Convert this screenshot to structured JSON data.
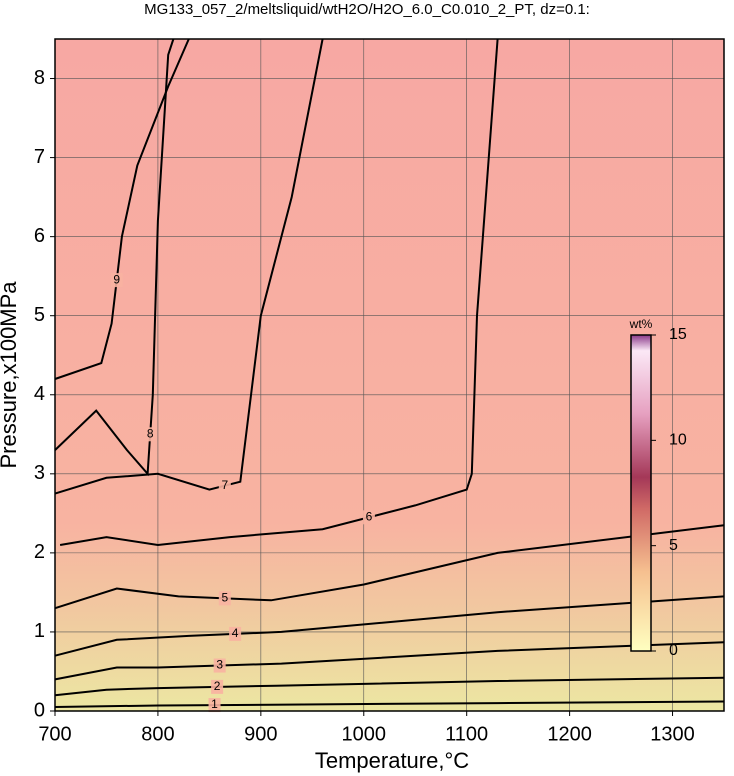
{
  "chart_data": {
    "type": "contour",
    "title": "MG133_057_2/meltsliquid/wtH2O/H2O_6.0_C0.010_2_PT, dz=0.1:",
    "x_label": "Temperature,°C",
    "y_label": "Pressure,x100MPa",
    "xlim": [
      700,
      1350
    ],
    "ylim": [
      0,
      8.5
    ],
    "xticks": [
      700,
      800,
      900,
      1000,
      1100,
      1200,
      1300
    ],
    "yticks": [
      0,
      1,
      2,
      3,
      4,
      5,
      6,
      7,
      8
    ],
    "grid": true,
    "contours": [
      {
        "level": 1,
        "x": [
          700,
          800,
          910,
          1130,
          1350
        ],
        "y": [
          0.05,
          0.07,
          0.08,
          0.1,
          0.12
        ]
      },
      {
        "level": 2,
        "x": [
          700,
          750,
          800,
          915,
          1130,
          1350
        ],
        "y": [
          0.2,
          0.27,
          0.29,
          0.32,
          0.38,
          0.42
        ]
      },
      {
        "level": 3,
        "x": [
          700,
          760,
          800,
          920,
          1130,
          1350
        ],
        "y": [
          0.4,
          0.55,
          0.55,
          0.6,
          0.76,
          0.87
        ]
      },
      {
        "level": 4,
        "x": [
          700,
          760,
          830,
          920,
          1130,
          1350
        ],
        "y": [
          0.7,
          0.9,
          0.95,
          1.0,
          1.25,
          1.45
        ]
      },
      {
        "level": 5,
        "x": [
          700,
          760,
          820,
          910,
          1000,
          1130,
          1350
        ],
        "y": [
          1.3,
          1.55,
          1.45,
          1.4,
          1.6,
          2.0,
          2.35
        ]
      },
      {
        "level": 6,
        "x": [
          705,
          750,
          800,
          870,
          960,
          1050,
          1100,
          1105,
          1110,
          1130
        ],
        "y": [
          2.1,
          2.2,
          2.1,
          2.2,
          2.3,
          2.6,
          2.8,
          3.0,
          5.0,
          8.5
        ]
      },
      {
        "level": 7,
        "x": [
          700,
          750,
          800,
          850,
          880,
          900,
          930,
          960
        ],
        "y": [
          2.75,
          2.95,
          3.0,
          2.8,
          2.9,
          5.0,
          6.5,
          8.5
        ]
      },
      {
        "level": 8,
        "x": [
          700,
          740,
          770,
          790,
          795,
          800,
          810,
          815
        ],
        "y": [
          3.3,
          3.8,
          3.3,
          3.0,
          4.0,
          6.2,
          8.3,
          8.5
        ]
      },
      {
        "level": 9,
        "x": [
          700,
          745,
          755,
          765,
          780,
          810,
          830
        ],
        "y": [
          4.2,
          4.4,
          4.9,
          6.0,
          6.9,
          7.9,
          8.5
        ]
      }
    ],
    "colorbar": {
      "label": "wt%",
      "lim": [
        0,
        15
      ],
      "ticks": [
        0,
        5,
        10,
        15
      ]
    }
  }
}
